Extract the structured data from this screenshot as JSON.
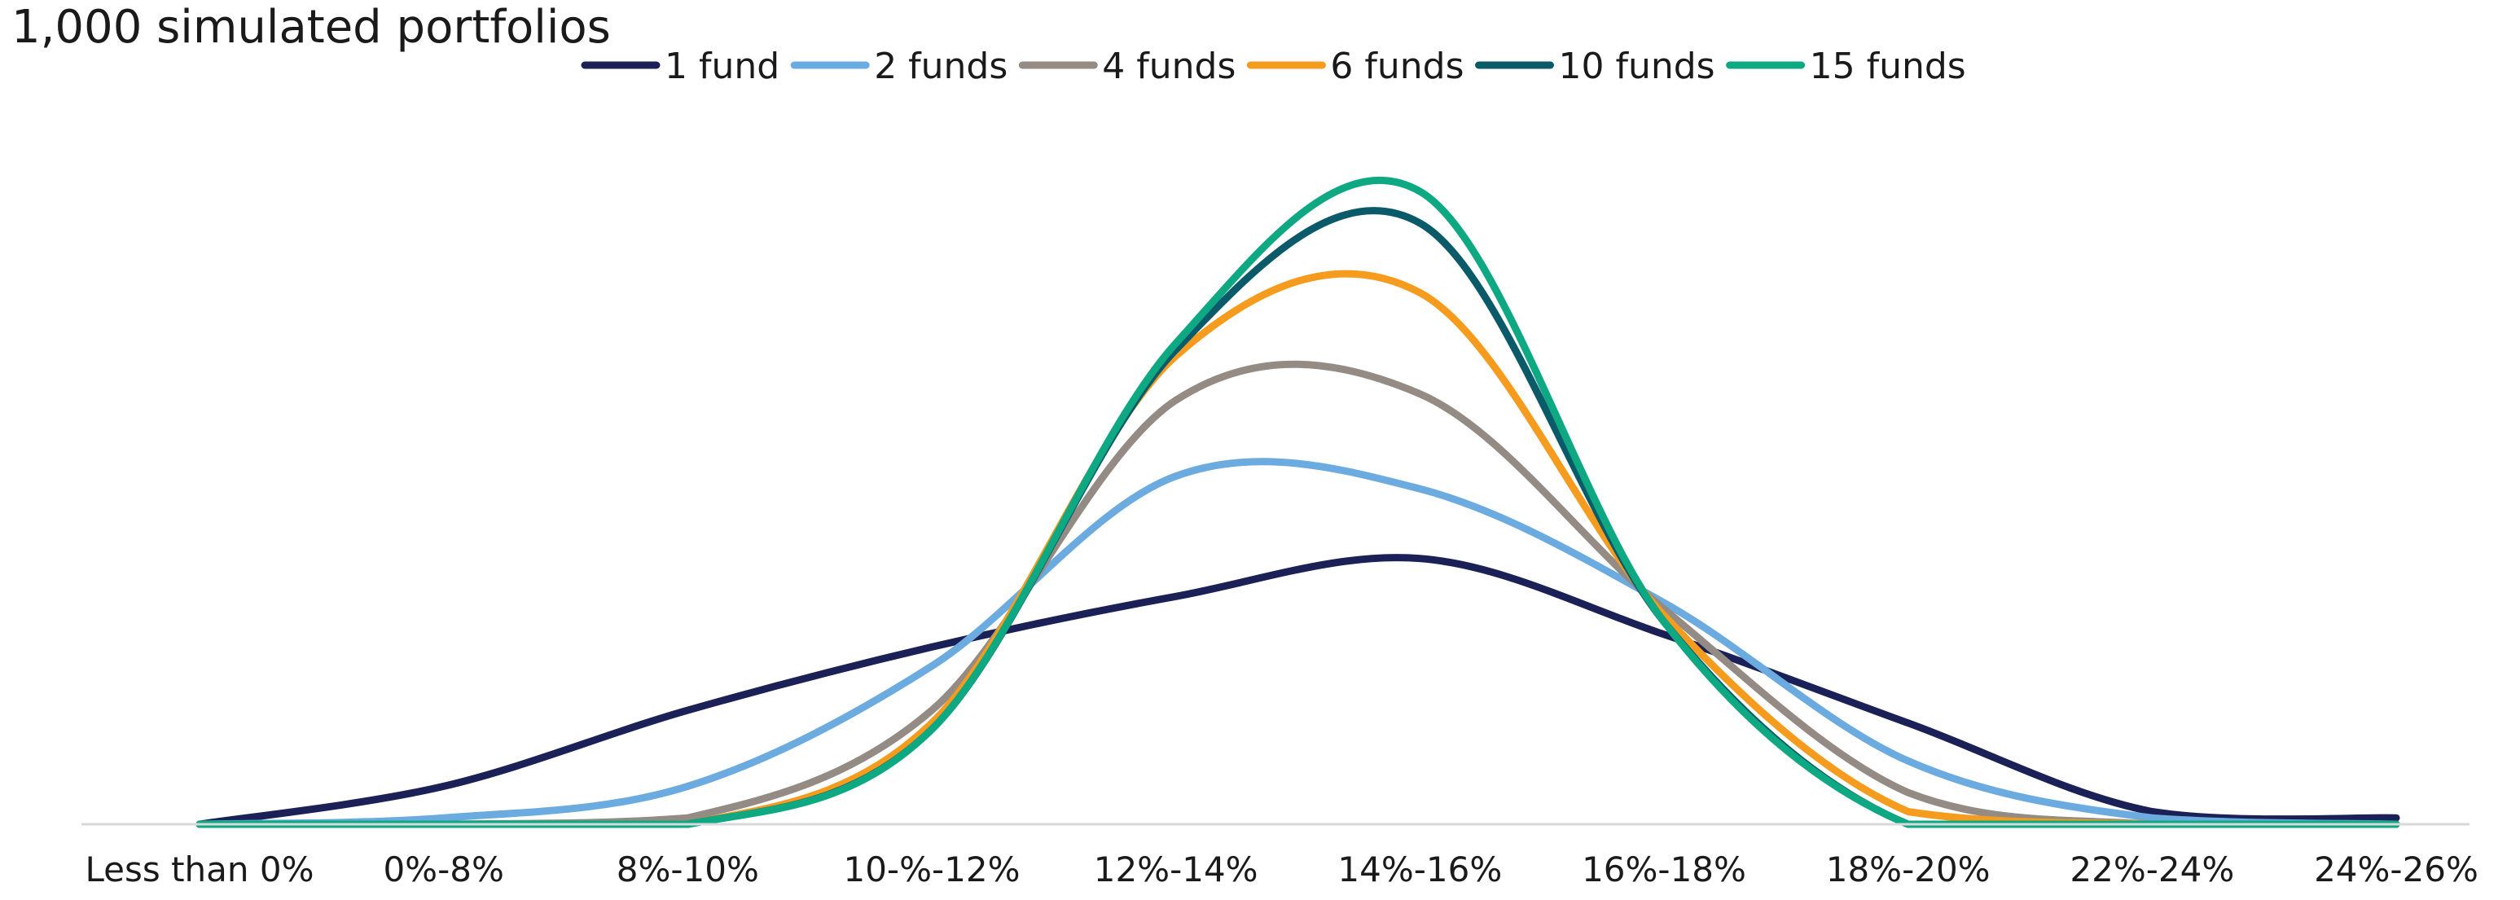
{
  "chart_data": {
    "type": "line",
    "title": "1,000 simulated portfolios",
    "xlabel": "",
    "ylabel": "",
    "categories": [
      "Less than 0%",
      "0%-8%",
      "8%-10%",
      "10-%-12%",
      "12%-14%",
      "14%-16%",
      "16%-18%",
      "18%-20%",
      "22%-24%",
      "24%-26%"
    ],
    "ylim": [
      0,
      100
    ],
    "grid": false,
    "legend_position": "top",
    "series": [
      {
        "name": "1 fund",
        "color": "#1b2157",
        "values": [
          0,
          6,
          18,
          28,
          36,
          42,
          30,
          16,
          2,
          1
        ]
      },
      {
        "name": "2 funds",
        "color": "#6cabe0",
        "values": [
          0,
          1,
          6,
          25,
          55,
          53,
          35,
          10,
          1,
          0
        ]
      },
      {
        "name": "4 funds",
        "color": "#948b84",
        "values": [
          0,
          0,
          1,
          18,
          67,
          68,
          34,
          5,
          0,
          0
        ]
      },
      {
        "name": "6 funds",
        "color": "#f59b1e",
        "values": [
          0,
          0,
          0,
          16,
          74,
          84,
          33,
          2,
          0,
          0
        ]
      },
      {
        "name": "10 funds",
        "color": "#0b5a6a",
        "values": [
          0,
          0,
          0,
          15,
          75,
          95,
          32,
          0,
          0,
          0
        ]
      },
      {
        "name": "15 funds",
        "color": "#0ea882",
        "values": [
          0,
          0,
          0,
          15,
          76,
          100,
          32,
          0,
          0,
          0
        ]
      }
    ]
  }
}
